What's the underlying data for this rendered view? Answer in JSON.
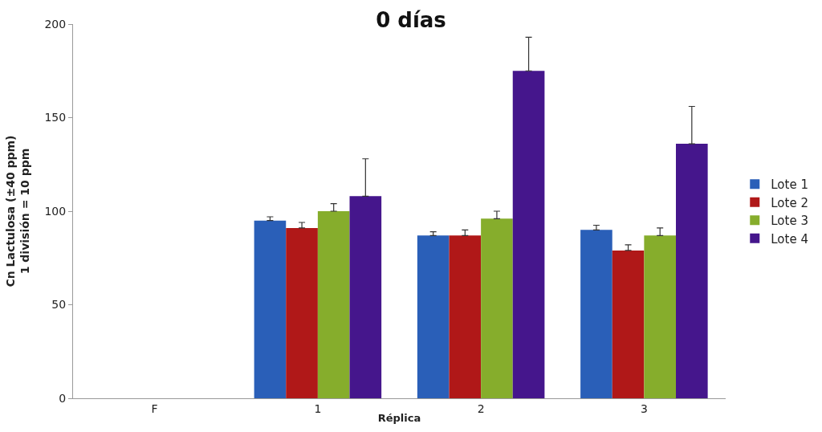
{
  "chart_data": {
    "type": "bar",
    "title": "0 días",
    "xlabel": "Réplica",
    "ylabel": "Cn Lactulosa (±40 ppm)\n1 división = 10 ppm",
    "categories": [
      "F",
      "1",
      "2",
      "3"
    ],
    "series": [
      {
        "name": "Lote 1",
        "color": "#2a5fb8",
        "values": [
          null,
          95,
          87,
          90
        ],
        "errors": [
          null,
          2,
          2,
          2.5
        ]
      },
      {
        "name": "Lote 2",
        "color": "#b01818",
        "values": [
          null,
          91,
          87,
          79
        ],
        "errors": [
          null,
          3,
          3,
          3
        ]
      },
      {
        "name": "Lote 3",
        "color": "#86ad2c",
        "values": [
          null,
          100,
          96,
          87
        ],
        "errors": [
          null,
          4,
          4,
          4
        ]
      },
      {
        "name": "Lote 4",
        "color": "#45168c",
        "values": [
          null,
          108,
          175,
          136
        ],
        "errors": [
          null,
          20,
          18,
          20
        ]
      }
    ],
    "ylim": [
      0,
      200
    ],
    "yticks": [
      0,
      50,
      100,
      150,
      200
    ],
    "legend": "right"
  }
}
